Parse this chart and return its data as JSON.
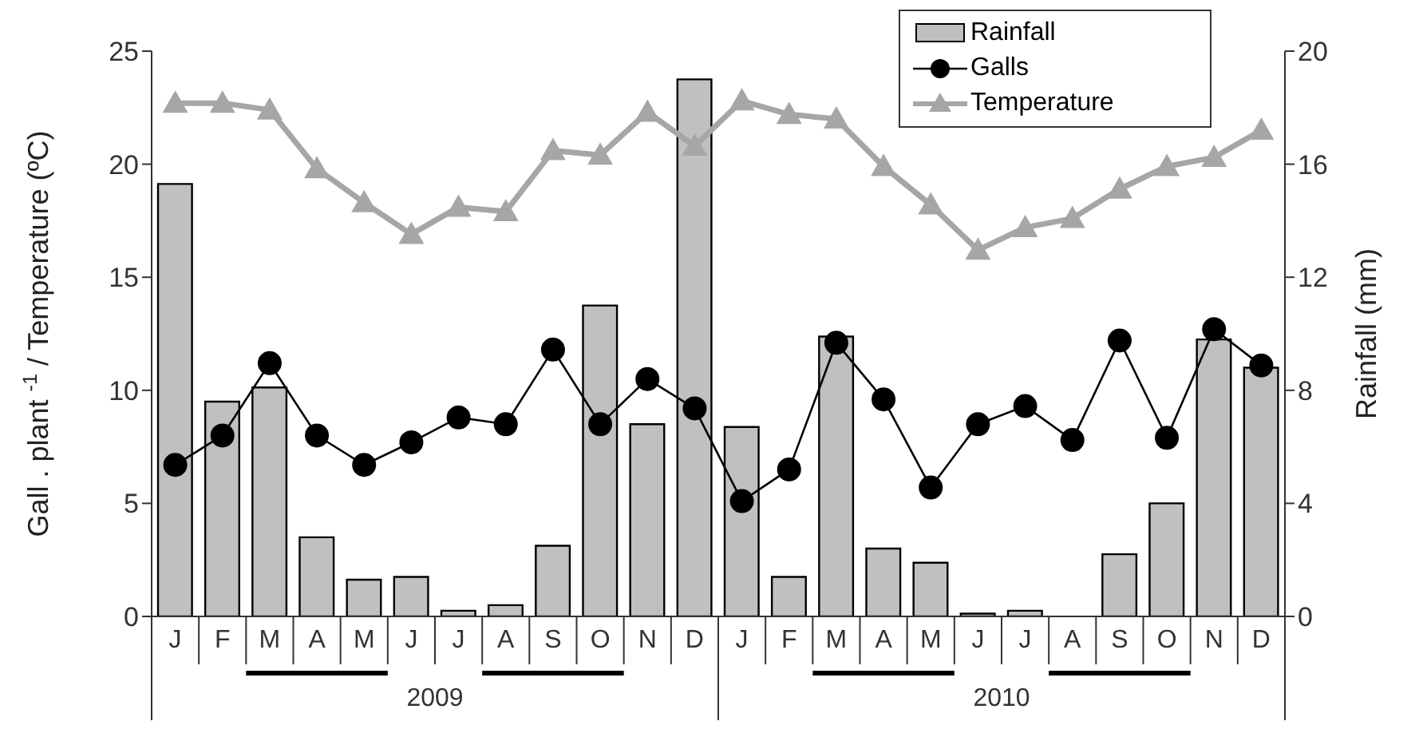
{
  "chart_data": {
    "type": "bar",
    "categories": [
      "J",
      "F",
      "M",
      "A",
      "M",
      "J",
      "J",
      "A",
      "S",
      "O",
      "N",
      "D",
      "J",
      "F",
      "M",
      "A",
      "M",
      "J",
      "J",
      "A",
      "S",
      "O",
      "N",
      "D"
    ],
    "ylabel": "Gall . plant $^{-1}$ / Temperature (ºC)",
    "y2label": "Rainfall (mm)",
    "annotations": [
      "2009",
      "2010"
    ],
    "series": [
      {
        "name": "Rainfall",
        "axis": "y2",
        "color": "#c0c0c0",
        "values": [
          15.3,
          7.6,
          8.1,
          2.8,
          1.3,
          1.4,
          0.2,
          0.4,
          2.5,
          11.0,
          6.8,
          19.0,
          6.7,
          1.4,
          9.9,
          2.4,
          1.9,
          0.1,
          0.2,
          0,
          2.2,
          4.0,
          9.8,
          8.8
        ]
      },
      {
        "name": "Galls",
        "type": "line",
        "color": "#000000",
        "marker": "circle",
        "values": [
          6.7,
          8.0,
          11.2,
          8.0,
          6.7,
          7.7,
          8.8,
          8.5,
          11.8,
          8.5,
          10.5,
          9.2,
          5.1,
          6.5,
          12.1,
          9.6,
          5.7,
          8.5,
          9.3,
          7.8,
          12.2,
          7.9,
          12.7,
          11.1
        ]
      },
      {
        "name": "Temperature",
        "type": "line",
        "color": "#a6a6a6",
        "marker": "triangle",
        "values": [
          22.7,
          22.7,
          22.4,
          19.8,
          18.3,
          16.9,
          18.1,
          17.9,
          20.6,
          20.4,
          22.3,
          20.8,
          22.8,
          22.2,
          22.0,
          19.9,
          18.2,
          16.2,
          17.2,
          17.6,
          18.9,
          19.9,
          20.3,
          21.5
        ]
      }
    ],
    "ylim": [
      0,
      25
    ],
    "yticks": [
      0,
      5,
      10,
      15,
      20,
      25
    ],
    "y2lim": [
      0,
      20
    ],
    "y2ticks": [
      0,
      4,
      8,
      12,
      16,
      20
    ],
    "legend": "top right"
  }
}
